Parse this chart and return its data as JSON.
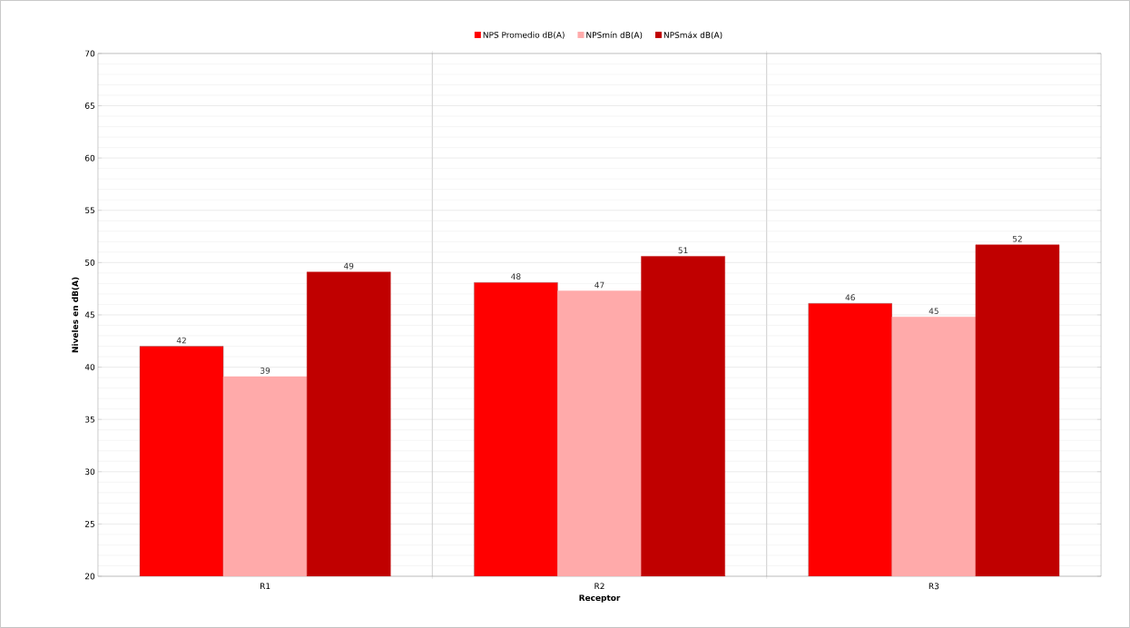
{
  "chart_data": {
    "type": "bar",
    "xlabel": "Receptor",
    "ylabel": "Niveles en dB(A)",
    "categories": [
      "R1",
      "R2",
      "R3"
    ],
    "series": [
      {
        "name": "NPS Promedio dB(A)",
        "color": "#ff0000",
        "values": [
          42.0,
          48.1,
          46.1
        ],
        "value_labels": [
          "42",
          "48",
          "46"
        ]
      },
      {
        "name": "NPSmín dB(A)",
        "color": "#ffaaaa",
        "values": [
          39.1,
          47.3,
          44.8
        ],
        "value_labels": [
          "39",
          "47",
          "45"
        ]
      },
      {
        "name": "NPSmáx dB(A)",
        "color": "#c00000",
        "values": [
          49.1,
          50.6,
          51.7
        ],
        "value_labels": [
          "49",
          "51",
          "52"
        ]
      }
    ],
    "ylim": [
      20,
      70
    ],
    "yticks": [
      20,
      25,
      30,
      35,
      40,
      45,
      50,
      55,
      60,
      65,
      70
    ],
    "grid": true,
    "legend": "top"
  }
}
